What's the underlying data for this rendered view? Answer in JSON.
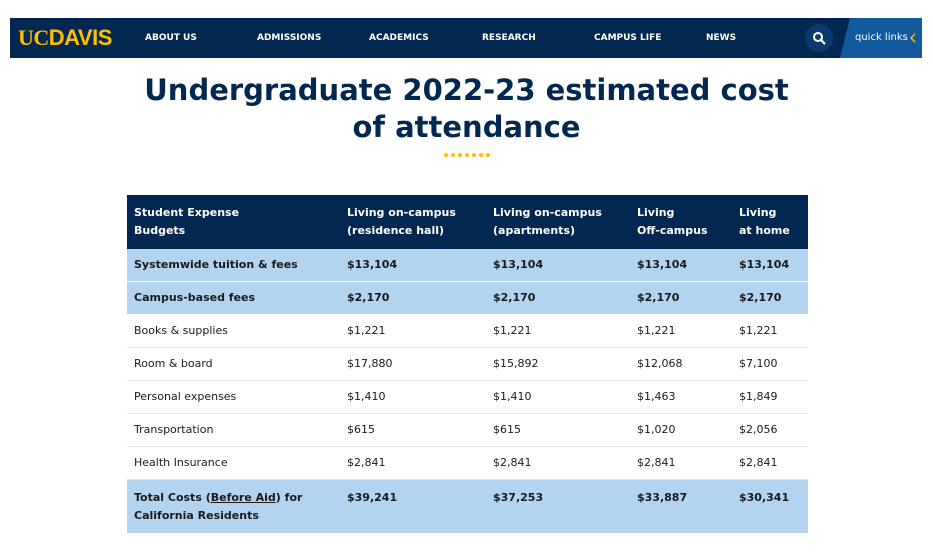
{
  "nav": {
    "logo": {
      "uc": "UC",
      "davis": "DAVIS"
    },
    "items": [
      "ABOUT US",
      "ADMISSIONS",
      "ACADEMICS",
      "RESEARCH",
      "CAMPUS LIFE",
      "NEWS"
    ],
    "quick_links": "quick links"
  },
  "header": {
    "title": "Undergraduate 2022-23 estimated cost of attendance"
  },
  "table": {
    "columns": [
      [
        "Student Expense",
        "Budgets"
      ],
      [
        "Living on-campus",
        "(residence hall)"
      ],
      [
        "Living on-campus",
        "(apartments)"
      ],
      [
        "Living",
        "Off-campus"
      ],
      [
        "Living",
        "at home"
      ]
    ],
    "rows": [
      [
        "Systemwide tuition & fees",
        "$13,104",
        "$13,104",
        "$13,104",
        "$13,104"
      ],
      [
        "Campus-based fees",
        "$2,170",
        "$2,170",
        "$2,170",
        "$2,170"
      ],
      [
        "Books & supplies",
        "$1,221",
        "$1,221",
        "$1,221",
        "$1,221"
      ],
      [
        "Room & board",
        "$17,880",
        "$15,892",
        "$12,068",
        "$7,100"
      ],
      [
        "Personal expenses",
        "$1,410",
        "$1,410",
        "$1,463",
        "$1,849"
      ],
      [
        "Transportation",
        "$615",
        "$615",
        "$1,020",
        "$2,056"
      ],
      [
        "Health Insurance",
        "$2,841",
        "$2,841",
        "$2,841",
        "$2,841"
      ]
    ],
    "total": {
      "label": {
        "before": "Total Costs (",
        "link": "Before Aid",
        "after": ") for",
        "line2": "California Residents"
      },
      "values": [
        "$39,241",
        "$37,253",
        "$33,887",
        "$30,341"
      ]
    }
  }
}
